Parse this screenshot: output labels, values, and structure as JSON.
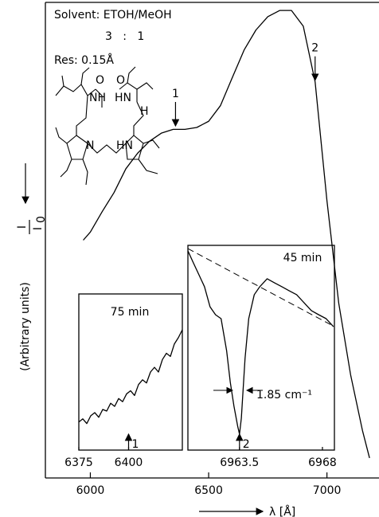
{
  "chart_data": [
    {
      "type": "line",
      "xlabel": "λ [Å]",
      "ylabel": "(Arbitrary units)",
      "ylabel_fraction": {
        "numerator": "I",
        "denominator": "I",
        "subscript": "0"
      },
      "texts": [
        "Solvent: ETOH/MeOH",
        "3   :   1",
        "Res: 0.15Å"
      ],
      "structure_labels": [
        "O",
        "O",
        "NH",
        "HN",
        "H",
        "N",
        "HN"
      ],
      "xlim": [
        5810,
        7220
      ],
      "xticks": [
        6000,
        6500,
        7000
      ],
      "ylim": [
        0,
        1
      ],
      "x": [
        5970,
        6000,
        6050,
        6100,
        6150,
        6200,
        6250,
        6300,
        6350,
        6400,
        6450,
        6500,
        6550,
        6600,
        6650,
        6700,
        6750,
        6800,
        6850,
        6900,
        6950,
        7000,
        7050,
        7100,
        7150,
        7180
      ],
      "series": [
        {
          "color": "#000000",
          "linestyle": "solid",
          "values": [
            0.5,
            0.517,
            0.56,
            0.6,
            0.65,
            0.683,
            0.708,
            0.725,
            0.733,
            0.733,
            0.737,
            0.75,
            0.783,
            0.842,
            0.9,
            0.942,
            0.97,
            0.983,
            0.983,
            0.95,
            0.833,
            0.583,
            0.367,
            0.217,
            0.1,
            0.042
          ]
        }
      ],
      "annotations": [
        {
          "text": "1",
          "x": 6360,
          "y": 0.737
        },
        {
          "text": "2",
          "x": 6950,
          "y": 0.833
        }
      ]
    },
    {
      "type": "line",
      "title": "75 min",
      "xlim": [
        6375,
        6427
      ],
      "xticks": [
        6375,
        6400
      ],
      "ylim": [
        0,
        1
      ],
      "x": [
        6375,
        6377,
        6379,
        6381,
        6383,
        6385,
        6387,
        6389,
        6391,
        6393,
        6395,
        6397,
        6399,
        6401,
        6403,
        6405,
        6407,
        6409,
        6411,
        6413,
        6415,
        6417,
        6419,
        6421,
        6423,
        6425,
        6427
      ],
      "series": [
        {
          "color": "#000000",
          "linestyle": "solid",
          "values": [
            0.18,
            0.2,
            0.17,
            0.22,
            0.24,
            0.21,
            0.26,
            0.25,
            0.3,
            0.28,
            0.33,
            0.31,
            0.36,
            0.38,
            0.35,
            0.42,
            0.45,
            0.43,
            0.5,
            0.53,
            0.5,
            0.58,
            0.62,
            0.6,
            0.68,
            0.72,
            0.77
          ]
        }
      ],
      "annotations": [
        {
          "text": "1",
          "x": 6400
        }
      ]
    },
    {
      "type": "line",
      "title": "45 min",
      "width_label": "1.85 cm⁻¹",
      "xlim": [
        6960.7,
        6968.65
      ],
      "xticks": [
        {
          "value": 6963.5,
          "label": "6963.5"
        },
        6968
      ],
      "ylim": [
        0,
        1
      ],
      "series": [
        {
          "color": "#000000",
          "linestyle": "solid",
          "x": [
            6960.7,
            6961.0,
            6961.3,
            6961.6,
            6961.9,
            6962.2,
            6962.5,
            6962.8,
            6963.0,
            6963.2,
            6963.4,
            6963.5,
            6963.6,
            6963.8,
            6964.0,
            6964.3,
            6964.6,
            6965.0,
            6965.4,
            6965.8,
            6966.2,
            6966.6,
            6967.0,
            6967.4,
            6967.8,
            6968.2,
            6968.6
          ],
          "values": [
            0.973,
            0.914,
            0.856,
            0.798,
            0.7,
            0.661,
            0.642,
            0.486,
            0.331,
            0.214,
            0.117,
            0.078,
            0.156,
            0.447,
            0.642,
            0.759,
            0.798,
            0.837,
            0.817,
            0.798,
            0.778,
            0.759,
            0.72,
            0.681,
            0.661,
            0.642,
            0.603
          ]
        },
        {
          "color": "#000000",
          "linestyle": "dashed",
          "x": [
            6960.7,
            6968.65
          ],
          "values": [
            0.984,
            0.603
          ]
        }
      ],
      "annotations": [
        {
          "text": "2",
          "x": 6963.5
        }
      ]
    }
  ]
}
